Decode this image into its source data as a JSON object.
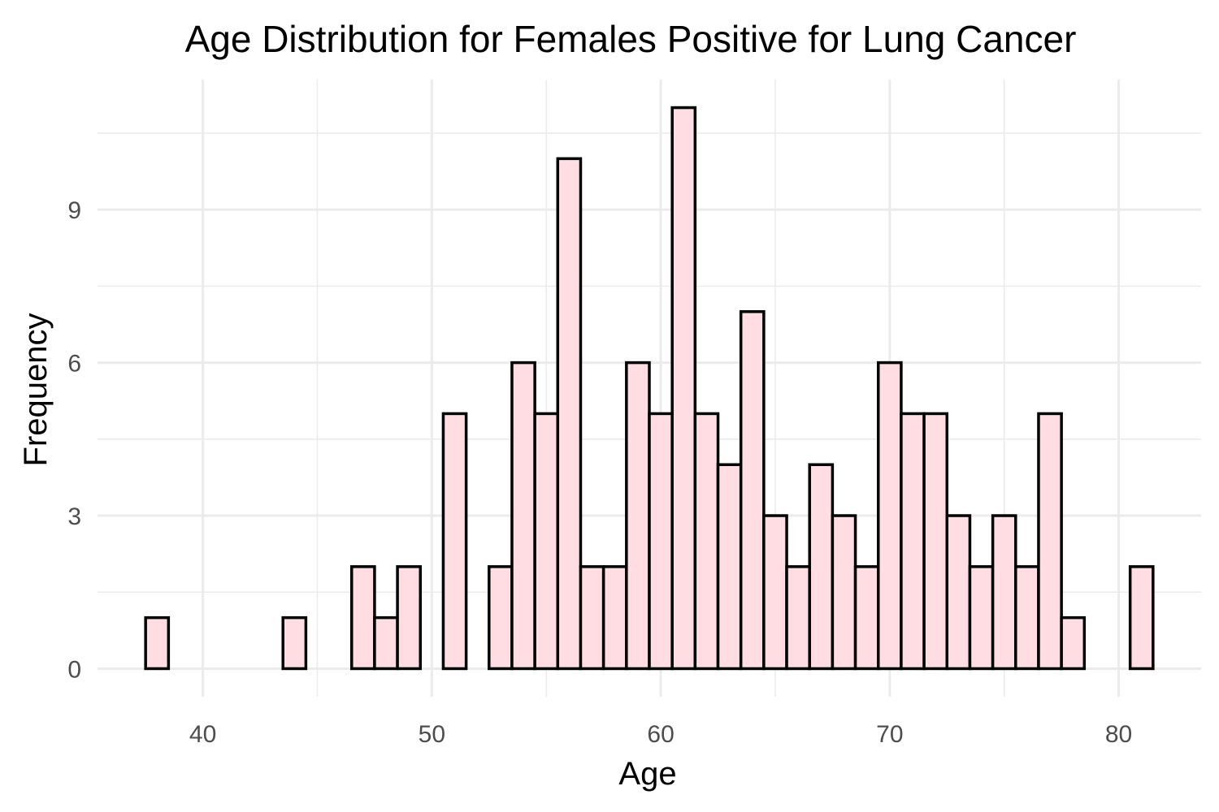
{
  "chart_data": {
    "type": "bar",
    "title": "Age Distribution for Females Positive for Lung Cancer",
    "xlabel": "Age",
    "ylabel": "Frequency",
    "xlim": [
      35.4,
      83.6
    ],
    "ylim": [
      -0.55,
      11.55
    ],
    "x_ticks": [
      40,
      50,
      60,
      70,
      80
    ],
    "y_ticks": [
      0,
      3,
      6,
      9
    ],
    "grid": true,
    "bar_width": 1,
    "x": [
      38,
      44,
      47,
      48,
      49,
      51,
      53,
      54,
      55,
      56,
      57,
      58,
      59,
      60,
      61,
      62,
      63,
      64,
      65,
      66,
      67,
      68,
      69,
      70,
      71,
      72,
      73,
      74,
      75,
      76,
      77,
      78,
      81
    ],
    "values": [
      1,
      1,
      2,
      1,
      2,
      5,
      2,
      6,
      5,
      10,
      2,
      2,
      6,
      5,
      11,
      5,
      4,
      7,
      3,
      2,
      4,
      3,
      2,
      6,
      5,
      5,
      3,
      2,
      3,
      2,
      5,
      1,
      2
    ],
    "colors": {
      "bar_fill": "#ffdde3",
      "bar_stroke": "#000000",
      "grid": "#ebebeb",
      "tick_text": "#4d4d4d"
    }
  }
}
